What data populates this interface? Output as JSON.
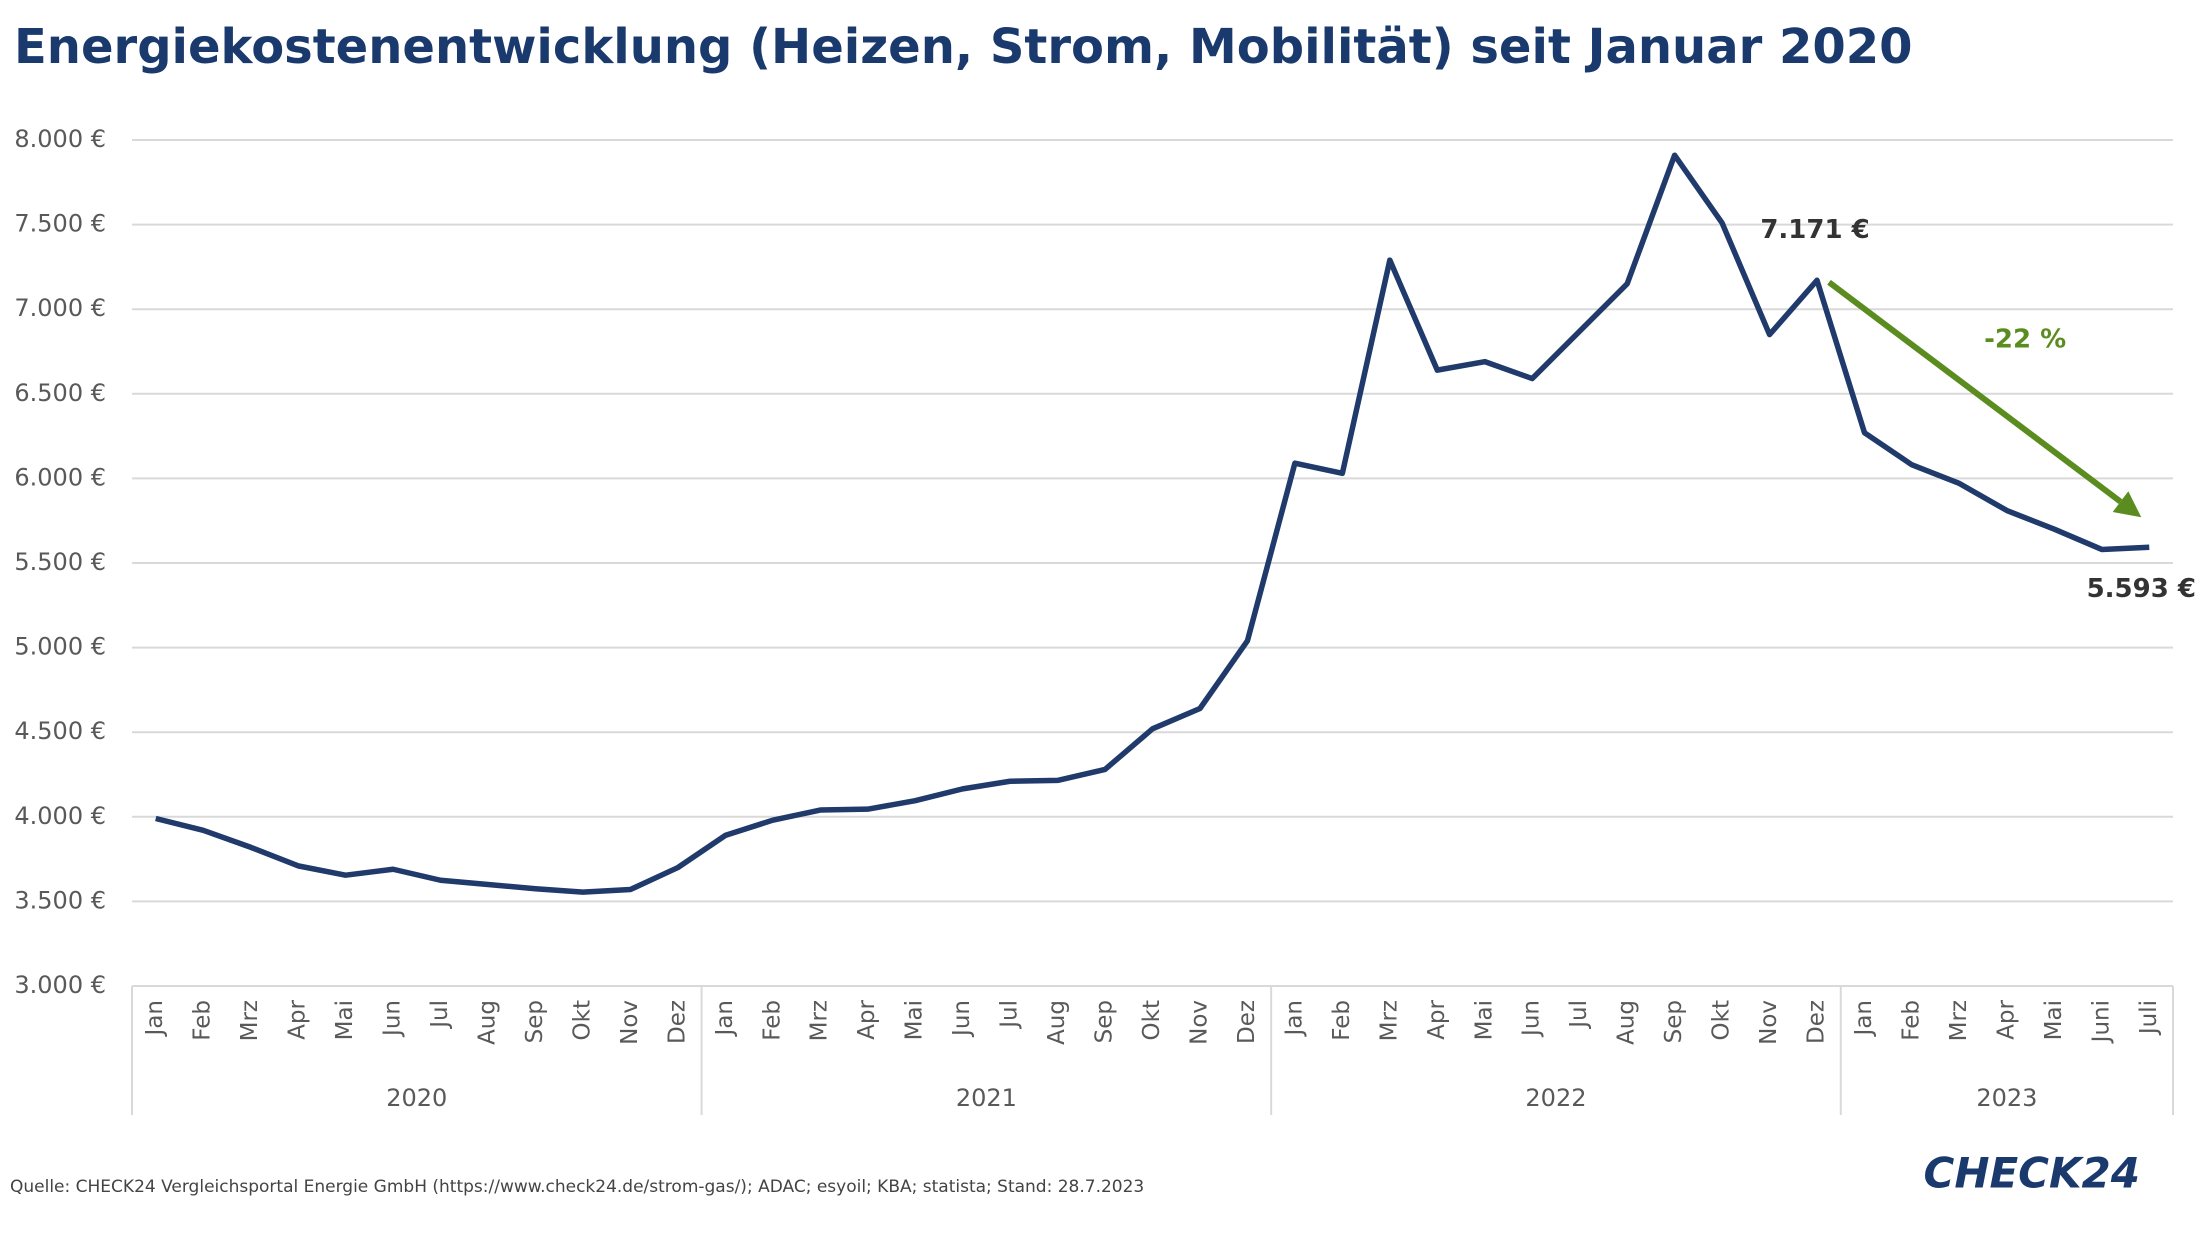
{
  "chart_data": {
    "type": "line",
    "title": "Energiekostenentwicklung (Heizen, Strom, Mobilität) seit Januar 2020",
    "category_groups": [
      {
        "label": "2020",
        "categories": [
          "Jan",
          "Feb",
          "Mrz",
          "Apr",
          "Mai",
          "Jun",
          "Jul",
          "Aug",
          "Sep",
          "Okt",
          "Nov",
          "Dez"
        ]
      },
      {
        "label": "2021",
        "categories": [
          "Jan",
          "Feb",
          "Mrz",
          "Apr",
          "Mai",
          "Jun",
          "Jul",
          "Aug",
          "Sep",
          "Okt",
          "Nov",
          "Dez"
        ]
      },
      {
        "label": "2022",
        "categories": [
          "Jan",
          "Feb",
          "Mrz",
          "Apr",
          "Mai",
          "Jun",
          "Jul",
          "Aug",
          "Sep",
          "Okt",
          "Nov",
          "Dez"
        ]
      },
      {
        "label": "2023",
        "categories": [
          "Jan",
          "Feb",
          "Mrz",
          "Apr",
          "Mai",
          "Juni",
          "Juli"
        ]
      }
    ],
    "color": "#1f3a6b",
    "values": [
      3990,
      3920,
      3820,
      3710,
      3655,
      3690,
      3625,
      3600,
      3575,
      3555,
      3570,
      3700,
      3890,
      3980,
      4040,
      4045,
      4095,
      4165,
      4210,
      4215,
      4280,
      4520,
      4640,
      5040,
      6090,
      6030,
      7290,
      6640,
      6690,
      6590,
      6870,
      7150,
      7910,
      7510,
      6850,
      7171,
      6270,
      6080,
      5970,
      5810,
      5700,
      5580,
      5593
    ],
    "value_labels": [
      null,
      null,
      null,
      null,
      null,
      null,
      null,
      null,
      null,
      null,
      null,
      null,
      null,
      null,
      null,
      null,
      null,
      null,
      null,
      null,
      null,
      null,
      null,
      null,
      null,
      null,
      null,
      null,
      null,
      null,
      null,
      null,
      null,
      null,
      null,
      "7.171 €",
      null,
      null,
      null,
      null,
      null,
      null,
      "5.593 €"
    ],
    "annotation": {
      "text": "-22 %",
      "color": "#5b8c1f"
    },
    "ylim": [
      3000,
      8000
    ],
    "yticks": [
      {
        "value": 3000,
        "label": "3.000 €"
      },
      {
        "value": 3500,
        "label": "3.500 €"
      },
      {
        "value": 4000,
        "label": "4.000 €"
      },
      {
        "value": 4500,
        "label": "4.500 €"
      },
      {
        "value": 5000,
        "label": "5.000 €"
      },
      {
        "value": 5500,
        "label": "5.500 €"
      },
      {
        "value": 6000,
        "label": "6.000 €"
      },
      {
        "value": 6500,
        "label": "6.500 €"
      },
      {
        "value": 7000,
        "label": "7.000 €"
      },
      {
        "value": 7500,
        "label": "7.500 €"
      },
      {
        "value": 8000,
        "label": "8.000 €"
      }
    ],
    "grid": true,
    "source": "Quelle: CHECK24 Vergleichsportal Energie GmbH (https://www.check24.de/strom-gas/); ADAC; esyoil; KBA; statista; Stand: 28.7.2023",
    "logo": "CHECK24"
  }
}
